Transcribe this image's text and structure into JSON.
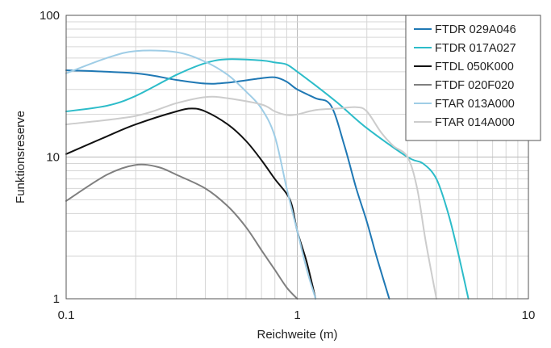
{
  "chart_data": {
    "type": "line",
    "title": "",
    "xlabel": "Reichweite (m)",
    "ylabel": "Funktionsreserve",
    "xscale": "log",
    "yscale": "log",
    "xlim": [
      0.1,
      10
    ],
    "ylim": [
      1,
      100
    ],
    "x_ticks": [
      {
        "value": 0.1,
        "label": "0.1"
      },
      {
        "value": 1,
        "label": "1"
      },
      {
        "value": 10,
        "label": "10"
      }
    ],
    "y_ticks": [
      {
        "value": 1,
        "label": "1"
      },
      {
        "value": 10,
        "label": "10"
      },
      {
        "value": 100,
        "label": "100"
      }
    ],
    "grid": true,
    "legend_position": "top-right",
    "series": [
      {
        "name": "FTDR 029A046",
        "color": "#1f78b4",
        "points": [
          [
            0.1,
            41
          ],
          [
            0.2,
            39
          ],
          [
            0.3,
            35
          ],
          [
            0.4,
            33
          ],
          [
            0.5,
            33.5
          ],
          [
            0.7,
            36
          ],
          [
            0.8,
            36.5
          ],
          [
            0.9,
            34
          ],
          [
            1.0,
            30
          ],
          [
            1.2,
            26
          ],
          [
            1.4,
            23
          ],
          [
            1.6,
            12
          ],
          [
            1.8,
            6
          ],
          [
            2.0,
            3.5
          ],
          [
            2.2,
            2
          ],
          [
            2.5,
            1
          ]
        ]
      },
      {
        "name": "FTDR 017A027",
        "color": "#2cbcc9",
        "points": [
          [
            0.1,
            21
          ],
          [
            0.15,
            23
          ],
          [
            0.2,
            27
          ],
          [
            0.3,
            38
          ],
          [
            0.4,
            46
          ],
          [
            0.5,
            49
          ],
          [
            0.7,
            48
          ],
          [
            0.8,
            46.5
          ],
          [
            0.9,
            45
          ],
          [
            1.0,
            40
          ],
          [
            1.2,
            32
          ],
          [
            1.5,
            24
          ],
          [
            2.0,
            16
          ],
          [
            3.0,
            10
          ],
          [
            3.5,
            9
          ],
          [
            4.0,
            7
          ],
          [
            4.5,
            4
          ],
          [
            5.0,
            2
          ],
          [
            5.5,
            1
          ]
        ]
      },
      {
        "name": "FTDL 050K000",
        "color": "#111111",
        "points": [
          [
            0.1,
            10.5
          ],
          [
            0.15,
            14
          ],
          [
            0.2,
            17
          ],
          [
            0.3,
            21
          ],
          [
            0.35,
            22
          ],
          [
            0.4,
            21
          ],
          [
            0.5,
            17
          ],
          [
            0.6,
            13
          ],
          [
            0.7,
            9.5
          ],
          [
            0.8,
            7
          ],
          [
            0.9,
            5.5
          ],
          [
            0.95,
            4.5
          ],
          [
            1.0,
            3
          ],
          [
            1.1,
            1.8
          ],
          [
            1.2,
            1
          ]
        ]
      },
      {
        "name": "FTDF 020F020",
        "color": "#7f7f7f",
        "points": [
          [
            0.1,
            4.9
          ],
          [
            0.15,
            7.5
          ],
          [
            0.2,
            8.8
          ],
          [
            0.25,
            8.5
          ],
          [
            0.3,
            7.5
          ],
          [
            0.4,
            6
          ],
          [
            0.5,
            4.5
          ],
          [
            0.6,
            3.2
          ],
          [
            0.7,
            2.2
          ],
          [
            0.8,
            1.6
          ],
          [
            0.9,
            1.2
          ],
          [
            1.0,
            1
          ]
        ]
      },
      {
        "name": "FTAR 013A000",
        "color": "#9fcde6",
        "points": [
          [
            0.1,
            39
          ],
          [
            0.15,
            50
          ],
          [
            0.2,
            56
          ],
          [
            0.3,
            55
          ],
          [
            0.4,
            47
          ],
          [
            0.5,
            38
          ],
          [
            0.6,
            29
          ],
          [
            0.7,
            22
          ],
          [
            0.8,
            14
          ],
          [
            0.9,
            6
          ],
          [
            1.0,
            3
          ],
          [
            1.1,
            1.6
          ],
          [
            1.2,
            1
          ]
        ]
      },
      {
        "name": "FTAR 014A000",
        "color": "#cccccc",
        "points": [
          [
            0.1,
            17
          ],
          [
            0.2,
            19.5
          ],
          [
            0.3,
            24
          ],
          [
            0.4,
            26.5
          ],
          [
            0.5,
            26
          ],
          [
            0.7,
            23.5
          ],
          [
            0.8,
            21
          ],
          [
            0.9,
            19.8
          ],
          [
            1.0,
            20
          ],
          [
            1.2,
            21.5
          ],
          [
            1.5,
            22
          ],
          [
            1.8,
            22.5
          ],
          [
            2.0,
            21
          ],
          [
            2.3,
            15
          ],
          [
            2.6,
            12
          ],
          [
            3.0,
            10
          ],
          [
            3.3,
            6
          ],
          [
            3.6,
            2.5
          ],
          [
            4.0,
            1
          ]
        ]
      }
    ]
  }
}
